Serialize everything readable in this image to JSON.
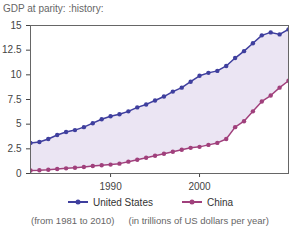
{
  "chart_data": {
    "type": "line",
    "title": "GDP at parity: :history:",
    "annotations": [
      "(from 1981 to 2010)",
      "(in trillions of US dollars per year)"
    ],
    "x": [
      1981,
      1982,
      1983,
      1984,
      1985,
      1986,
      1987,
      1988,
      1989,
      1990,
      1991,
      1992,
      1993,
      1994,
      1995,
      1996,
      1997,
      1998,
      1999,
      2000,
      2001,
      2002,
      2003,
      2004,
      2005,
      2006,
      2007,
      2008,
      2009,
      2010
    ],
    "series": [
      {
        "name": "United States",
        "color": "#3f3f9e",
        "marker": "circle",
        "values": [
          3.1,
          3.2,
          3.5,
          3.9,
          4.2,
          4.4,
          4.7,
          5.1,
          5.5,
          5.8,
          6.0,
          6.3,
          6.7,
          7.0,
          7.4,
          7.8,
          8.3,
          8.7,
          9.3,
          9.9,
          10.2,
          10.4,
          10.9,
          11.7,
          12.4,
          13.2,
          14.0,
          14.3,
          14.1,
          14.6
        ]
      },
      {
        "name": "China",
        "color": "#a0407c",
        "marker": "circle",
        "values": [
          0.3,
          0.33,
          0.38,
          0.45,
          0.52,
          0.58,
          0.66,
          0.76,
          0.83,
          0.9,
          1.0,
          1.2,
          1.4,
          1.6,
          1.8,
          2.0,
          2.2,
          2.4,
          2.6,
          2.7,
          2.9,
          3.1,
          3.5,
          4.7,
          5.3,
          6.3,
          7.3,
          7.9,
          8.7,
          9.4
        ]
      }
    ],
    "xlim": [
      1981,
      2010
    ],
    "xticks": [
      1990,
      2000
    ],
    "ylim": [
      0,
      15
    ],
    "yticks": [
      0,
      2.5,
      5,
      7.5,
      10,
      12.5,
      15
    ],
    "grid": false,
    "legend": "bottom"
  }
}
